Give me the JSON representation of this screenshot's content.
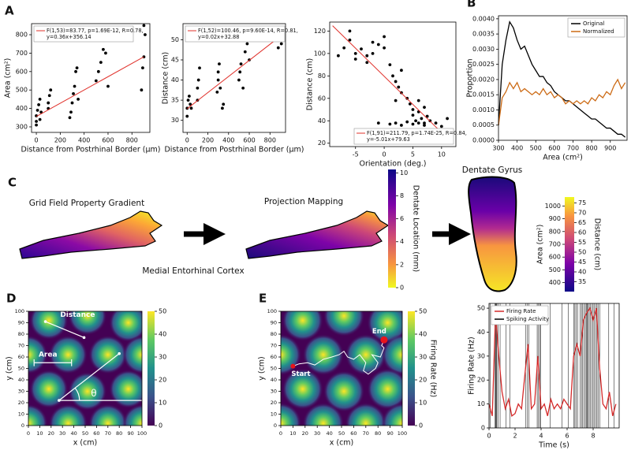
{
  "chart_data": [
    {
      "type": "scatter",
      "letter": "A",
      "xlabel": "Distance from Postrhinal Border (µm)",
      "ylabel": "Area (cm²)",
      "xlim": [
        -40,
        950
      ],
      "ylim": [
        270,
        860
      ],
      "xticks": [
        0,
        200,
        400,
        600,
        800
      ],
      "yticks": [
        300,
        400,
        500,
        600,
        700,
        800
      ],
      "color": "#000000",
      "legend": "upper left",
      "x": [
        0,
        0,
        0,
        10,
        20,
        30,
        30,
        40,
        100,
        100,
        110,
        120,
        280,
        290,
        300,
        310,
        320,
        330,
        340,
        350,
        500,
        520,
        540,
        560,
        580,
        600,
        880,
        890,
        900,
        900,
        910
      ],
      "y": [
        310,
        330,
        360,
        390,
        420,
        450,
        340,
        380,
        400,
        430,
        470,
        500,
        350,
        380,
        430,
        480,
        520,
        600,
        620,
        450,
        550,
        600,
        650,
        720,
        700,
        520,
        500,
        620,
        680,
        850,
        800
      ],
      "fit": {
        "color": "#e0302a",
        "x": [
          0,
          900
        ],
        "y": [
          356.14,
          680.14
        ]
      },
      "annotation": [
        "F(1,53)=83.77, p=1.69E-12, R=0.78,",
        "y=0.36x+356.14"
      ]
    },
    {
      "type": "scatter",
      "xlabel": "Distance from Postrhinal Border (µm)",
      "ylabel": "Distance (cm)",
      "xlim": [
        -40,
        950
      ],
      "ylim": [
        27,
        54
      ],
      "xticks": [
        0,
        200,
        400,
        600,
        800
      ],
      "yticks": [
        30,
        35,
        40,
        45,
        50
      ],
      "color": "#000000",
      "legend": "upper left",
      "x": [
        0,
        0,
        10,
        20,
        30,
        40,
        100,
        100,
        110,
        120,
        290,
        300,
        300,
        310,
        320,
        340,
        350,
        500,
        510,
        520,
        540,
        560,
        580,
        600,
        880,
        890,
        900,
        900,
        910
      ],
      "y": [
        31,
        33,
        35,
        36,
        34,
        33,
        35,
        38,
        40,
        43,
        37,
        40,
        42,
        44,
        38,
        33,
        34,
        40,
        42,
        44,
        38,
        47,
        49,
        45,
        48,
        50,
        52,
        51,
        49
      ],
      "fit": {
        "color": "#e0302a",
        "x": [
          0,
          900
        ],
        "y": [
          32.88,
          50.88
        ]
      },
      "annotation": [
        "F(1,52)=100.46, p=9.60E-14, R=0.81,",
        "y=0.02x+32.88"
      ]
    },
    {
      "type": "scatter",
      "xlabel": "Orientation (deg.)",
      "ylabel": "Distance (cm)",
      "xlim": [
        -9.5,
        12.5
      ],
      "ylim": [
        17,
        128
      ],
      "xticks": [
        -5,
        0,
        5,
        10
      ],
      "yticks": [
        20,
        40,
        60,
        80,
        100,
        120
      ],
      "color": "#000000",
      "legend": "lower right",
      "x": [
        -8,
        -7,
        -6,
        -5,
        -4,
        -3,
        -2,
        -1,
        0,
        -5,
        -3,
        0,
        1,
        1.5,
        2,
        2.5,
        3,
        3,
        4,
        4.5,
        5,
        5,
        5.5,
        6,
        6,
        6.5,
        7,
        7,
        7.5,
        8,
        -1,
        1,
        2,
        3,
        4,
        5,
        6,
        7,
        9,
        10,
        11,
        -6,
        -2,
        2
      ],
      "y": [
        98,
        105,
        112,
        100,
        104,
        98,
        110,
        108,
        115,
        95,
        92,
        105,
        90,
        80,
        75,
        70,
        85,
        65,
        60,
        55,
        50,
        45,
        40,
        58,
        48,
        42,
        38,
        52,
        44,
        40,
        38,
        37,
        38,
        36,
        39,
        37,
        38,
        36,
        38,
        35,
        42,
        120,
        100,
        58
      ],
      "fit": {
        "color": "#e0302a",
        "x": [
          -9,
          11
        ],
        "y": [
          124.72,
          24.52
        ]
      },
      "annotation": [
        "F(1,91)=211.79, p=1.74E-25, R=0.84,",
        "y=-5.01x+79.63"
      ]
    },
    {
      "type": "line",
      "letter": "B",
      "xlabel": "Area (cm²)",
      "ylabel": "Proportion",
      "xlim": [
        300,
        990
      ],
      "ylim": [
        0,
        0.0041
      ],
      "xticks": [
        300,
        400,
        500,
        600,
        700,
        800,
        900
      ],
      "yticks": [
        {
          "value": 0,
          "label": "0.0000"
        },
        {
          "value": 0.0005,
          "label": "0.0005"
        },
        {
          "value": 0.001,
          "label": "0.0010"
        },
        {
          "value": 0.0015,
          "label": "0.0015"
        },
        {
          "value": 0.002,
          "label": "0.0020"
        },
        {
          "value": 0.0025,
          "label": "0.0025"
        },
        {
          "value": 0.003,
          "label": "0.0030"
        },
        {
          "value": 0.0035,
          "label": "0.0035"
        },
        {
          "value": 0.004,
          "label": "0.0040"
        }
      ],
      "legend": "upper right",
      "x": [
        300,
        320,
        340,
        360,
        380,
        400,
        420,
        440,
        460,
        480,
        500,
        520,
        540,
        560,
        580,
        600,
        620,
        640,
        660,
        680,
        700,
        720,
        740,
        760,
        780,
        800,
        820,
        840,
        860,
        880,
        900,
        920,
        940,
        960,
        980
      ],
      "series": [
        {
          "name": "Original",
          "color": "#000000",
          "values": [
            0.0005,
            0.0025,
            0.0033,
            0.0039,
            0.0037,
            0.0033,
            0.003,
            0.0031,
            0.0028,
            0.0025,
            0.0023,
            0.0021,
            0.0021,
            0.0019,
            0.0018,
            0.0016,
            0.0015,
            0.0014,
            0.0013,
            0.0013,
            0.0012,
            0.0011,
            0.001,
            0.0009,
            0.0008,
            0.0007,
            0.0007,
            0.0006,
            0.0005,
            0.0004,
            0.0004,
            0.0003,
            0.0002,
            0.0002,
            0.0001
          ]
        },
        {
          "name": "Normalized",
          "color": "#cc6a14",
          "values": [
            0.0005,
            0.0014,
            0.0016,
            0.0019,
            0.0017,
            0.0019,
            0.0016,
            0.0017,
            0.0016,
            0.0015,
            0.0016,
            0.0015,
            0.0017,
            0.0015,
            0.0016,
            0.0014,
            0.0015,
            0.0014,
            0.0012,
            0.0013,
            0.0012,
            0.0013,
            0.0012,
            0.0013,
            0.0012,
            0.0014,
            0.0013,
            0.0015,
            0.0014,
            0.0016,
            0.0015,
            0.0018,
            0.002,
            0.0017,
            0.0019
          ]
        }
      ]
    },
    {
      "type": "heatmap",
      "letter": "D",
      "xlabel": "x (cm)",
      "ylabel": "y (cm)",
      "xlim": [
        0,
        100
      ],
      "ylim": [
        0,
        100
      ],
      "xticks": [
        0,
        10,
        20,
        30,
        40,
        50,
        60,
        70,
        80,
        90,
        100
      ],
      "yticks": [
        0,
        10,
        20,
        30,
        40,
        50,
        60,
        70,
        80,
        90,
        100
      ],
      "fields": {
        "x": [
          18,
          52,
          88,
          0,
          35,
          70,
          100,
          18,
          52,
          88,
          0,
          35,
          70,
          100
        ],
        "y": [
          92,
          96,
          90,
          62,
          62,
          62,
          62,
          32,
          30,
          32,
          2,
          2,
          2,
          2
        ]
      },
      "annotations": {
        "distance": "Distance",
        "area": "Area",
        "angle": "θ"
      },
      "colorbar": {
        "lim": [
          0,
          50
        ],
        "ticks": [
          0,
          10,
          20,
          30,
          40,
          50
        ]
      }
    },
    {
      "type": "heatmap",
      "letter": "E",
      "xlabel": "x (cm)",
      "ylabel": "y (cm)",
      "xlim": [
        0,
        100
      ],
      "ylim": [
        0,
        100
      ],
      "xticks": [
        0,
        10,
        20,
        30,
        40,
        50,
        60,
        70,
        80,
        90,
        100
      ],
      "yticks": [
        0,
        10,
        20,
        30,
        40,
        50,
        60,
        70,
        80,
        90,
        100
      ],
      "fields": {
        "x": [
          18,
          52,
          88,
          0,
          35,
          70,
          100,
          18,
          52,
          88,
          0,
          35,
          70,
          100
        ],
        "y": [
          92,
          96,
          90,
          62,
          62,
          62,
          62,
          32,
          30,
          32,
          2,
          2,
          2,
          2
        ]
      },
      "trajectory": {
        "color": "#ffffff",
        "marker_color": "#e8141c",
        "start_label": "Start",
        "end_label": "End",
        "x": [
          10,
          15,
          22,
          28,
          35,
          42,
          48,
          52,
          55,
          60,
          65,
          70,
          68,
          72,
          78,
          80,
          75,
          82,
          85,
          83,
          85
        ],
        "y": [
          52,
          54,
          55,
          53,
          58,
          60,
          62,
          65,
          60,
          58,
          62,
          55,
          48,
          45,
          50,
          55,
          62,
          60,
          68,
          70,
          75
        ]
      },
      "colorbar": {
        "label": "Firing Rate (Hz)",
        "lim": [
          0,
          50
        ],
        "ticks": [
          0,
          10,
          20,
          30,
          40,
          50
        ]
      }
    },
    {
      "type": "line",
      "xlabel": "Time (s)",
      "ylabel": "Firing Rate (Hz)",
      "xlim": [
        0,
        10
      ],
      "ylim": [
        0,
        52
      ],
      "xticks": [
        0,
        2,
        4,
        6,
        8
      ],
      "yticks": [
        0,
        10,
        20,
        30,
        40,
        50
      ],
      "legend": "upper left",
      "x": [
        0,
        0.25,
        0.5,
        0.75,
        1,
        1.25,
        1.5,
        1.75,
        2,
        2.25,
        2.5,
        2.75,
        3,
        3.25,
        3.5,
        3.75,
        4,
        4.25,
        4.5,
        4.75,
        5,
        5.25,
        5.5,
        5.75,
        6,
        6.25,
        6.5,
        6.75,
        7,
        7.25,
        7.5,
        7.75,
        8,
        8.25,
        8.5,
        8.75,
        9,
        9.25,
        9.5,
        9.75
      ],
      "series": [
        {
          "name": "Firing Rate",
          "color": "#d42a2a",
          "values": [
            10,
            5,
            48,
            30,
            15,
            8,
            12,
            5,
            6,
            10,
            8,
            22,
            35,
            8,
            10,
            30,
            8,
            10,
            5,
            12,
            8,
            10,
            8,
            12,
            10,
            8,
            30,
            35,
            30,
            45,
            48,
            50,
            45,
            50,
            25,
            10,
            8,
            15,
            5,
            10
          ]
        }
      ],
      "spikes": {
        "name": "Spiking Activity",
        "color": "#000000",
        "times": [
          0.1,
          0.45,
          0.5,
          0.55,
          0.6,
          0.7,
          0.85,
          1.3,
          1.6,
          2.8,
          2.95,
          3.05,
          3.7,
          3.8,
          3.9,
          3.95,
          4.7,
          5.6,
          6.1,
          6.5,
          6.6,
          6.7,
          6.8,
          7,
          7.1,
          7.2,
          7.3,
          7.4,
          7.5,
          7.55,
          7.6,
          7.7,
          7.8,
          7.9,
          8,
          8.1,
          8.2,
          8.3,
          8.4,
          8.5,
          9.2,
          9.6
        ]
      }
    }
  ],
  "diagram": {
    "letter": "C",
    "left_title": "Grid Field Property Gradient",
    "middle_title": "Projection Mapping",
    "bottom_label": "Medial Entorhinal Cortex",
    "right_title": "Dentate Gyrus",
    "colorbars": [
      {
        "label": "Dentate Location (mm)",
        "lim": [
          0,
          10.3
        ],
        "ticks": [
          0,
          2,
          4,
          6,
          8,
          10
        ]
      },
      {
        "label": "Area (cm²)",
        "lim": [
          330,
          1070
        ],
        "ticks": [
          400,
          500,
          600,
          700,
          800,
          900,
          1000
        ],
        "label2": "Distance (cm)",
        "lim2": [
          30,
          78
        ],
        "ticks2": [
          35,
          40,
          45,
          50,
          55,
          60,
          65,
          70,
          75
        ]
      }
    ]
  }
}
